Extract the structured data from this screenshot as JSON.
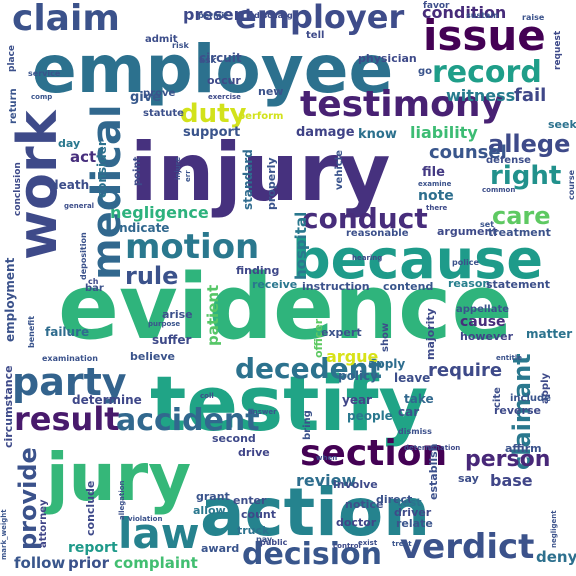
{
  "words": [
    {
      "text": "evidence",
      "color": "#2fb47c"
    },
    {
      "text": "injury",
      "color": "#46317e"
    },
    {
      "text": "employee",
      "color": "#2c718e"
    },
    {
      "text": "testify",
      "color": "#20a486"
    },
    {
      "text": "jury",
      "color": "#35b779"
    },
    {
      "text": "action",
      "color": "#25838e"
    },
    {
      "text": "because",
      "color": "#1e9b8a"
    },
    {
      "text": "work",
      "color": "#3e4a89"
    },
    {
      "text": "testimony",
      "color": "#482173"
    },
    {
      "text": "issue",
      "color": "#440154"
    },
    {
      "text": "medical",
      "color": "#31688e"
    },
    {
      "text": "claim",
      "color": "#3b528b"
    },
    {
      "text": "employer",
      "color": "#3e4c8a"
    },
    {
      "text": "section",
      "color": "#440154"
    },
    {
      "text": "party",
      "color": "#33638d"
    },
    {
      "text": "motion",
      "color": "#2a788e"
    },
    {
      "text": "law",
      "color": "#26828e"
    },
    {
      "text": "verdict",
      "color": "#3b528b"
    },
    {
      "text": "decision",
      "color": "#39568c"
    },
    {
      "text": "result",
      "color": "#481a6c"
    },
    {
      "text": "accident",
      "color": "#31688e"
    },
    {
      "text": "conduct",
      "color": "#472d7b"
    },
    {
      "text": "record",
      "color": "#1f9e89"
    },
    {
      "text": "duty",
      "color": "#d2e21b"
    },
    {
      "text": "decedent",
      "color": "#2c728e"
    },
    {
      "text": "claimant",
      "color": "#2a788e"
    },
    {
      "text": "provide",
      "color": "#3b528b"
    },
    {
      "text": "right",
      "color": "#21918c"
    },
    {
      "text": "care",
      "color": "#5ec962"
    },
    {
      "text": "rule",
      "color": "#3b528b"
    },
    {
      "text": "allege",
      "color": "#3e4a89"
    },
    {
      "text": "person",
      "color": "#482878"
    },
    {
      "text": "present",
      "color": "#3e4989"
    },
    {
      "text": "condition",
      "color": "#472c7a"
    },
    {
      "text": "negligence",
      "color": "#2db27d"
    },
    {
      "text": "counsel",
      "color": "#39568c"
    },
    {
      "text": "witness",
      "color": "#287d8e"
    },
    {
      "text": "fail",
      "color": "#3f4788"
    },
    {
      "text": "liability",
      "color": "#3dbc74"
    },
    {
      "text": "require",
      "color": "#3e4a89"
    },
    {
      "text": "review",
      "color": "#2e6e8e"
    },
    {
      "text": "base",
      "color": "#404688"
    },
    {
      "text": "complaint",
      "color": "#42be71"
    },
    {
      "text": "follow",
      "color": "#39568c"
    },
    {
      "text": "prior",
      "color": "#3b528b"
    },
    {
      "text": "report",
      "color": "#1f9a8a"
    },
    {
      "text": "deny",
      "color": "#2d708e"
    },
    {
      "text": "hospital",
      "color": "#2a788e"
    },
    {
      "text": "patient",
      "color": "#56c667"
    },
    {
      "text": "argue",
      "color": "#d8e219"
    },
    {
      "text": "support",
      "color": "#3a548c"
    },
    {
      "text": "damage",
      "color": "#404387"
    },
    {
      "text": "know",
      "color": "#2c718e"
    },
    {
      "text": "note",
      "color": "#2e6f8e"
    },
    {
      "text": "file",
      "color": "#443a83"
    },
    {
      "text": "act",
      "color": "#472f7d"
    },
    {
      "text": "give",
      "color": "#38598c"
    },
    {
      "text": "physician",
      "color": "#3e4a89"
    },
    {
      "text": "circuit",
      "color": "#3c508b"
    },
    {
      "text": "standard",
      "color": "#2f6b8e"
    },
    {
      "text": "properly",
      "color": "#3a548c"
    },
    {
      "text": "consider",
      "color": "#2c728e"
    },
    {
      "text": "indicate",
      "color": "#31688e"
    },
    {
      "text": "finding",
      "color": "#3f4889"
    },
    {
      "text": "receive",
      "color": "#2a768e"
    },
    {
      "text": "instruction",
      "color": "#3b518b"
    },
    {
      "text": "contend",
      "color": "#39568c"
    },
    {
      "text": "reason",
      "color": "#27808e"
    },
    {
      "text": "statement",
      "color": "#3c4f8a"
    },
    {
      "text": "cause",
      "color": "#472d7b"
    },
    {
      "text": "matter",
      "color": "#2c738e"
    },
    {
      "text": "however",
      "color": "#404588"
    },
    {
      "text": "expert",
      "color": "#3b528b"
    },
    {
      "text": "failure",
      "color": "#2f6c8e"
    },
    {
      "text": "suffer",
      "color": "#3e4a89"
    },
    {
      "text": "believe",
      "color": "#3a538b"
    },
    {
      "text": "determine",
      "color": "#3f4889"
    },
    {
      "text": "policy",
      "color": "#33638d"
    },
    {
      "text": "leave",
      "color": "#3d4e8a"
    },
    {
      "text": "apply",
      "color": "#2e6d8e"
    },
    {
      "text": "year",
      "color": "#404688"
    },
    {
      "text": "take",
      "color": "#31688e"
    },
    {
      "text": "people",
      "color": "#2a788e"
    },
    {
      "text": "car",
      "color": "#3b528b"
    },
    {
      "text": "second",
      "color": "#3e4989"
    },
    {
      "text": "drive",
      "color": "#404588"
    },
    {
      "text": "grant",
      "color": "#3a548c"
    },
    {
      "text": "allow",
      "color": "#2a788e"
    },
    {
      "text": "enter",
      "color": "#3d4e8a"
    },
    {
      "text": "count",
      "color": "#3f4889"
    },
    {
      "text": "truck",
      "color": "#2c728e"
    },
    {
      "text": "involve",
      "color": "#3e4a89"
    },
    {
      "text": "direct",
      "color": "#3b528b"
    },
    {
      "text": "notice",
      "color": "#3c508b"
    },
    {
      "text": "driver",
      "color": "#3e4a89"
    },
    {
      "text": "doctor",
      "color": "#404588"
    },
    {
      "text": "test",
      "color": "#2c728e"
    },
    {
      "text": "relate",
      "color": "#3a548c"
    },
    {
      "text": "say",
      "color": "#3d4e8a"
    },
    {
      "text": "affirm",
      "color": "#3b528b"
    },
    {
      "text": "reverse",
      "color": "#3e4a89"
    },
    {
      "text": "establish",
      "color": "#3c508b"
    },
    {
      "text": "award",
      "color": "#3a548c"
    },
    {
      "text": "conclude",
      "color": "#3e4989"
    },
    {
      "text": "attorney",
      "color": "#404588"
    },
    {
      "text": "employment",
      "color": "#3b528b"
    },
    {
      "text": "circumstance",
      "color": "#3e4a89"
    },
    {
      "text": "death",
      "color": "#3d4e8a"
    },
    {
      "text": "return",
      "color": "#3a548c"
    },
    {
      "text": "day",
      "color": "#2a788e"
    },
    {
      "text": "perform",
      "color": "#d2e21b"
    },
    {
      "text": "occur",
      "color": "#3e4a89"
    },
    {
      "text": "new",
      "color": "#3b528b"
    },
    {
      "text": "statute",
      "color": "#3c508b"
    },
    {
      "text": "prove",
      "color": "#3a548c"
    },
    {
      "text": "admit",
      "color": "#3d4e8a"
    },
    {
      "text": "tell",
      "color": "#3e4a89"
    },
    {
      "text": "ask",
      "color": "#3b528b"
    },
    {
      "text": "go",
      "color": "#3a548c"
    },
    {
      "text": "seek",
      "color": "#2c728e"
    },
    {
      "text": "defense",
      "color": "#3d4e8a"
    },
    {
      "text": "argument",
      "color": "#3e4a89"
    },
    {
      "text": "treatment",
      "color": "#3b528b"
    },
    {
      "text": "reasonable",
      "color": "#3c508b"
    },
    {
      "text": "vehicle",
      "color": "#3a548c"
    },
    {
      "text": "point",
      "color": "#3e4a89"
    },
    {
      "text": "bar",
      "color": "#3b528b"
    },
    {
      "text": "show",
      "color": "#3d4e8a"
    },
    {
      "text": "majority",
      "color": "#3e4a89"
    },
    {
      "text": "appellate",
      "color": "#3a548c"
    },
    {
      "text": "arise",
      "color": "#3c508b"
    },
    {
      "text": "officer",
      "color": "#5ec962"
    },
    {
      "text": "bring",
      "color": "#3b528b"
    },
    {
      "text": "cite",
      "color": "#3d4e8a"
    },
    {
      "text": "apply",
      "color": "#3e4a89"
    },
    {
      "text": "include",
      "color": "#3a548c"
    },
    {
      "text": "examination",
      "color": "#3b528b"
    },
    {
      "text": "conclusion",
      "color": "#3e4a89"
    },
    {
      "text": "place",
      "color": "#3c508b"
    },
    {
      "text": "service",
      "color": "#3a548c"
    },
    {
      "text": "permit",
      "color": "#3b528b"
    },
    {
      "text": "discharge",
      "color": "#3e4a89"
    },
    {
      "text": "favor",
      "color": "#3d4e8a"
    },
    {
      "text": "sustain",
      "color": "#3a548c"
    },
    {
      "text": "raise",
      "color": "#3b528b"
    },
    {
      "text": "request",
      "color": "#3e4a89"
    },
    {
      "text": "course",
      "color": "#3c508b"
    },
    {
      "text": "risk",
      "color": "#3b528b"
    },
    {
      "text": "exercise",
      "color": "#3e4a89"
    },
    {
      "text": "comp",
      "color": "#3a548c"
    },
    {
      "text": "general",
      "color": "#3d4e8a"
    },
    {
      "text": "pay",
      "color": "#3b528b"
    },
    {
      "text": "public",
      "color": "#3e4a89"
    },
    {
      "text": "benefit",
      "color": "#3a548c"
    },
    {
      "text": "dismiss",
      "color": "#3c508b"
    },
    {
      "text": "police",
      "color": "#3b528b"
    },
    {
      "text": "hearing",
      "color": "#3e4a89"
    },
    {
      "text": "set",
      "color": "#3a548c"
    },
    {
      "text": "common",
      "color": "#3d4e8a"
    },
    {
      "text": "entitle",
      "color": "#3b528b"
    },
    {
      "text": "determination",
      "color": "#3e4a89"
    },
    {
      "text": "answer",
      "color": "#3a548c"
    },
    {
      "text": "allegation",
      "color": "#3c508b"
    },
    {
      "text": "violation",
      "color": "#3b528b"
    },
    {
      "text": "control",
      "color": "#3e4a89"
    },
    {
      "text": "treat",
      "color": "#3a548c"
    },
    {
      "text": "exist",
      "color": "#3d4e8a"
    },
    {
      "text": "negligent",
      "color": "#3b528b"
    },
    {
      "text": "when",
      "color": "#3e4a89"
    },
    {
      "text": "err",
      "color": "#3a548c"
    },
    {
      "text": "injure",
      "color": "#3c508b"
    },
    {
      "text": "examine",
      "color": "#3b528b"
    },
    {
      "text": "there",
      "color": "#3e4a89"
    },
    {
      "text": "purpose",
      "color": "#3a548c"
    },
    {
      "text": "coll",
      "color": "#3d4e8a"
    },
    {
      "text": "deposition",
      "color": "#3b528b"
    },
    {
      "text": "ch",
      "color": "#3e4a89"
    },
    {
      "text": "mark_weight",
      "color": "#3a548c"
    }
  ]
}
